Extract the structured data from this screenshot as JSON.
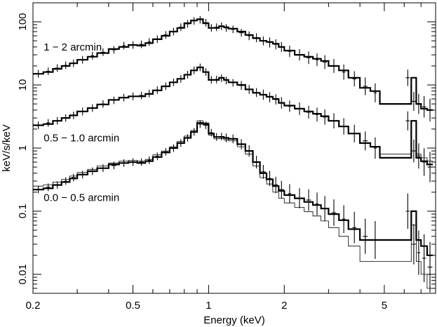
{
  "chart_data": {
    "type": "line",
    "title": "",
    "xlabel": "Energy (keV)",
    "ylabel": "keV/s/keV",
    "x_scale": "log",
    "y_scale": "log",
    "xlim": [
      0.2,
      8.0
    ],
    "ylim": [
      0.005,
      200
    ],
    "grid": false,
    "legend": "none",
    "x_ticks": [
      0.2,
      0.5,
      1,
      2,
      5
    ],
    "x_tick_labels": [
      "0.2",
      "0.5",
      "1",
      "2",
      "5"
    ],
    "y_ticks": [
      0.01,
      0.1,
      1,
      10,
      100
    ],
    "y_tick_labels": [
      "0.01",
      "0.1",
      "1",
      "10",
      "100"
    ],
    "annotations": [
      {
        "text": "1 − 2 arcmin",
        "x": 0.215,
        "y": 40
      },
      {
        "text": "0.5 − 1.0 arcmin",
        "x": 0.215,
        "y": 1.45
      },
      {
        "text": "0.0 − 0.5 arcmin",
        "x": 0.215,
        "y": 0.165
      }
    ],
    "energy_bins": [
      0.2,
      0.22,
      0.24,
      0.26,
      0.28,
      0.3,
      0.33,
      0.36,
      0.4,
      0.44,
      0.48,
      0.52,
      0.56,
      0.6,
      0.65,
      0.7,
      0.75,
      0.8,
      0.85,
      0.9,
      0.95,
      1.0,
      1.05,
      1.1,
      1.15,
      1.2,
      1.3,
      1.4,
      1.5,
      1.6,
      1.7,
      1.8,
      1.9,
      2.0,
      2.2,
      2.4,
      2.6,
      2.8,
      3.0,
      3.3,
      3.6,
      4.0,
      4.4,
      4.8,
      5.4,
      6.0,
      6.4,
      6.7,
      7.0,
      7.4,
      7.8
    ],
    "series": [
      {
        "model": [
          15,
          16,
          18,
          20,
          22,
          25,
          28,
          32,
          37,
          40,
          43,
          42,
          46,
          53,
          60,
          70,
          80,
          95,
          105,
          110,
          95,
          80,
          80,
          85,
          82,
          78,
          70,
          62,
          55,
          50,
          48,
          45,
          40,
          35,
          30,
          28,
          26,
          24,
          20,
          17,
          13,
          9,
          8,
          5,
          5,
          5,
          13,
          5,
          4.2,
          4.0
        ],
        "model_alt": [
          15,
          16,
          18,
          20,
          22,
          25,
          28,
          32,
          37,
          40,
          43,
          42,
          46,
          53,
          60,
          70,
          80,
          95,
          105,
          110,
          95,
          80,
          80,
          85,
          82,
          78,
          70,
          62,
          55,
          50,
          48,
          45,
          40,
          35,
          30,
          28,
          26,
          24,
          20,
          17,
          13,
          9,
          8,
          5,
          5,
          5,
          13,
          5,
          4.2,
          4.0
        ],
        "points": [
          [
            0.21,
            15
          ],
          [
            0.23,
            16.5
          ],
          [
            0.25,
            18.5
          ],
          [
            0.27,
            20.5
          ],
          [
            0.29,
            22
          ],
          [
            0.315,
            25
          ],
          [
            0.345,
            29
          ],
          [
            0.38,
            33
          ],
          [
            0.42,
            36
          ],
          [
            0.46,
            42
          ],
          [
            0.5,
            43
          ],
          [
            0.54,
            44
          ],
          [
            0.58,
            48
          ],
          [
            0.625,
            53
          ],
          [
            0.675,
            62
          ],
          [
            0.725,
            70
          ],
          [
            0.775,
            82
          ],
          [
            0.825,
            93
          ],
          [
            0.875,
            103
          ],
          [
            0.925,
            108
          ],
          [
            0.975,
            97
          ],
          [
            1.025,
            80
          ],
          [
            1.075,
            82
          ],
          [
            1.125,
            85
          ],
          [
            1.175,
            80
          ],
          [
            1.25,
            76
          ],
          [
            1.35,
            67
          ],
          [
            1.45,
            60
          ],
          [
            1.55,
            56
          ],
          [
            1.65,
            50
          ],
          [
            1.75,
            47
          ],
          [
            1.85,
            44
          ],
          [
            1.95,
            40
          ],
          [
            2.1,
            34
          ],
          [
            2.3,
            30
          ],
          [
            2.5,
            27
          ],
          [
            2.7,
            25
          ],
          [
            2.9,
            23
          ],
          [
            3.15,
            20
          ],
          [
            3.45,
            16
          ],
          [
            3.8,
            12.5
          ],
          [
            4.2,
            9.5
          ],
          [
            4.6,
            7.5
          ],
          [
            6.2,
            13
          ],
          [
            6.55,
            5.5
          ],
          [
            6.85,
            5
          ],
          [
            7.2,
            4.5
          ],
          [
            7.6,
            4.0
          ]
        ],
        "errors": [
          0.06,
          0.06,
          0.06,
          0.06,
          0.06,
          0.06,
          0.06,
          0.06,
          0.06,
          0.06,
          0.06,
          0.06,
          0.06,
          0.06,
          0.06,
          0.06,
          0.06,
          0.06,
          0.06,
          0.06,
          0.06,
          0.06,
          0.06,
          0.06,
          0.06,
          0.06,
          0.06,
          0.07,
          0.07,
          0.07,
          0.08,
          0.08,
          0.08,
          0.09,
          0.09,
          0.1,
          0.1,
          0.11,
          0.11,
          0.12,
          0.12,
          0.14,
          0.15,
          0.13,
          0.15,
          0.16,
          0.17,
          0.18
        ]
      },
      {
        "model": [
          2.3,
          2.4,
          2.7,
          3.0,
          3.3,
          3.8,
          4.3,
          4.9,
          5.8,
          6.3,
          6.6,
          6.6,
          7.2,
          8.2,
          9.5,
          11,
          12.5,
          14.5,
          17,
          19,
          16,
          12,
          12,
          13,
          12,
          11,
          10,
          8.5,
          7.5,
          7.0,
          6.5,
          6.0,
          5.2,
          4.7,
          4.2,
          3.8,
          3.5,
          3.2,
          2.7,
          2.2,
          1.7,
          1.2,
          1.05,
          0.7,
          0.7,
          0.7,
          2.7,
          0.7,
          0.62,
          0.55
        ],
        "model_alt": [
          2.3,
          2.4,
          2.7,
          3.0,
          3.3,
          3.8,
          4.3,
          4.9,
          5.8,
          6.3,
          6.6,
          6.6,
          7.2,
          8.2,
          9.5,
          11,
          12.5,
          14.5,
          17,
          19,
          16,
          12,
          12,
          13,
          12,
          11,
          10,
          8.5,
          7.5,
          7.0,
          6.5,
          6.0,
          5.2,
          4.7,
          4.2,
          3.8,
          3.5,
          3.2,
          2.7,
          2.2,
          1.7,
          1.2,
          1.05,
          0.8,
          0.8,
          0.8,
          2.7,
          0.8,
          0.7,
          0.62
        ],
        "points": [
          [
            0.21,
            2.3
          ],
          [
            0.23,
            2.5
          ],
          [
            0.25,
            2.7
          ],
          [
            0.27,
            3.0
          ],
          [
            0.29,
            3.3
          ],
          [
            0.315,
            3.8
          ],
          [
            0.345,
            4.3
          ],
          [
            0.38,
            5.0
          ],
          [
            0.42,
            5.7
          ],
          [
            0.46,
            6.3
          ],
          [
            0.5,
            6.6
          ],
          [
            0.54,
            6.8
          ],
          [
            0.58,
            7.3
          ],
          [
            0.625,
            8.3
          ],
          [
            0.675,
            9.5
          ],
          [
            0.725,
            11
          ],
          [
            0.775,
            12.5
          ],
          [
            0.825,
            14.5
          ],
          [
            0.875,
            17
          ],
          [
            0.925,
            19
          ],
          [
            0.975,
            16
          ],
          [
            1.025,
            12
          ],
          [
            1.075,
            12.2
          ],
          [
            1.125,
            12.8
          ],
          [
            1.175,
            11.8
          ],
          [
            1.25,
            10.8
          ],
          [
            1.35,
            9.8
          ],
          [
            1.45,
            8.5
          ],
          [
            1.55,
            7.6
          ],
          [
            1.65,
            7.0
          ],
          [
            1.75,
            6.4
          ],
          [
            1.85,
            5.9
          ],
          [
            1.95,
            5.2
          ],
          [
            2.1,
            4.6
          ],
          [
            2.3,
            4.2
          ],
          [
            2.5,
            3.7
          ],
          [
            2.7,
            3.4
          ],
          [
            2.9,
            3.1
          ],
          [
            3.15,
            2.7
          ],
          [
            3.45,
            2.2
          ],
          [
            3.8,
            1.7
          ],
          [
            4.2,
            1.3
          ],
          [
            4.6,
            1.0
          ],
          [
            6.2,
            2.7
          ],
          [
            6.55,
            0.9
          ],
          [
            6.85,
            0.75
          ],
          [
            7.2,
            0.6
          ],
          [
            7.6,
            0.5
          ]
        ],
        "errors": [
          0.06,
          0.06,
          0.06,
          0.06,
          0.06,
          0.06,
          0.06,
          0.06,
          0.06,
          0.06,
          0.06,
          0.06,
          0.06,
          0.06,
          0.06,
          0.06,
          0.06,
          0.06,
          0.06,
          0.06,
          0.06,
          0.06,
          0.06,
          0.06,
          0.06,
          0.06,
          0.07,
          0.07,
          0.07,
          0.08,
          0.08,
          0.08,
          0.09,
          0.09,
          0.1,
          0.1,
          0.11,
          0.12,
          0.12,
          0.13,
          0.14,
          0.15,
          0.17,
          0.15,
          0.18,
          0.2,
          0.22,
          0.24
        ]
      },
      {
        "model": [
          0.22,
          0.23,
          0.26,
          0.29,
          0.33,
          0.38,
          0.43,
          0.48,
          0.55,
          0.58,
          0.6,
          0.58,
          0.62,
          0.72,
          0.85,
          1.0,
          1.2,
          1.45,
          1.8,
          2.5,
          2.4,
          1.7,
          1.5,
          1.5,
          1.45,
          1.4,
          1.15,
          0.9,
          0.6,
          0.4,
          0.32,
          0.25,
          0.21,
          0.18,
          0.16,
          0.14,
          0.125,
          0.11,
          0.09,
          0.072,
          0.052,
          0.035,
          0.035,
          0.035,
          0.035,
          0.035,
          0.1,
          0.035,
          0.028,
          0.02
        ],
        "model_alt": [
          0.25,
          0.26,
          0.29,
          0.32,
          0.36,
          0.41,
          0.46,
          0.52,
          0.58,
          0.62,
          0.64,
          0.62,
          0.66,
          0.78,
          0.9,
          1.05,
          1.28,
          1.55,
          1.9,
          2.7,
          2.5,
          1.6,
          1.4,
          1.42,
          1.35,
          1.3,
          1.05,
          0.8,
          0.52,
          0.34,
          0.27,
          0.2,
          0.16,
          0.135,
          0.115,
          0.098,
          0.084,
          0.07,
          0.055,
          0.04,
          0.028,
          0.016,
          0.016,
          0.016,
          0.016,
          0.016,
          0.06,
          0.016,
          0.01,
          0.006
        ],
        "points": [
          [
            0.21,
            0.22
          ],
          [
            0.23,
            0.24
          ],
          [
            0.25,
            0.26
          ],
          [
            0.27,
            0.3
          ],
          [
            0.29,
            0.34
          ],
          [
            0.315,
            0.38
          ],
          [
            0.345,
            0.43
          ],
          [
            0.38,
            0.48
          ],
          [
            0.42,
            0.53
          ],
          [
            0.46,
            0.58
          ],
          [
            0.5,
            0.6
          ],
          [
            0.54,
            0.6
          ],
          [
            0.58,
            0.64
          ],
          [
            0.625,
            0.74
          ],
          [
            0.675,
            0.87
          ],
          [
            0.725,
            1.0
          ],
          [
            0.775,
            1.2
          ],
          [
            0.825,
            1.45
          ],
          [
            0.875,
            1.8
          ],
          [
            0.925,
            2.4
          ],
          [
            0.975,
            2.3
          ],
          [
            1.025,
            1.75
          ],
          [
            1.075,
            1.5
          ],
          [
            1.125,
            1.52
          ],
          [
            1.175,
            1.45
          ],
          [
            1.25,
            1.4
          ],
          [
            1.35,
            1.15
          ],
          [
            1.45,
            0.9
          ],
          [
            1.55,
            0.6
          ],
          [
            1.65,
            0.42
          ],
          [
            1.75,
            0.33
          ],
          [
            1.85,
            0.26
          ],
          [
            1.95,
            0.22
          ],
          [
            2.1,
            0.19
          ],
          [
            2.3,
            0.16
          ],
          [
            2.5,
            0.15
          ],
          [
            2.7,
            0.13
          ],
          [
            2.9,
            0.11
          ],
          [
            3.15,
            0.095
          ],
          [
            3.45,
            0.075
          ],
          [
            3.8,
            0.055
          ],
          [
            4.2,
            0.04
          ],
          [
            4.6,
            0.035
          ],
          [
            6.2,
            0.1
          ],
          [
            6.55,
            0.03
          ],
          [
            6.85,
            0.022
          ],
          [
            7.2,
            0.018
          ],
          [
            7.6,
            0.013
          ]
        ],
        "errors": [
          0.06,
          0.06,
          0.06,
          0.06,
          0.06,
          0.06,
          0.06,
          0.06,
          0.06,
          0.06,
          0.06,
          0.06,
          0.06,
          0.06,
          0.06,
          0.06,
          0.06,
          0.06,
          0.06,
          0.06,
          0.06,
          0.06,
          0.06,
          0.06,
          0.07,
          0.07,
          0.08,
          0.09,
          0.1,
          0.11,
          0.12,
          0.13,
          0.14,
          0.15,
          0.16,
          0.17,
          0.18,
          0.2,
          0.21,
          0.22,
          0.25,
          0.28,
          0.3,
          0.28,
          0.32,
          0.35,
          0.38,
          0.4
        ]
      }
    ]
  }
}
